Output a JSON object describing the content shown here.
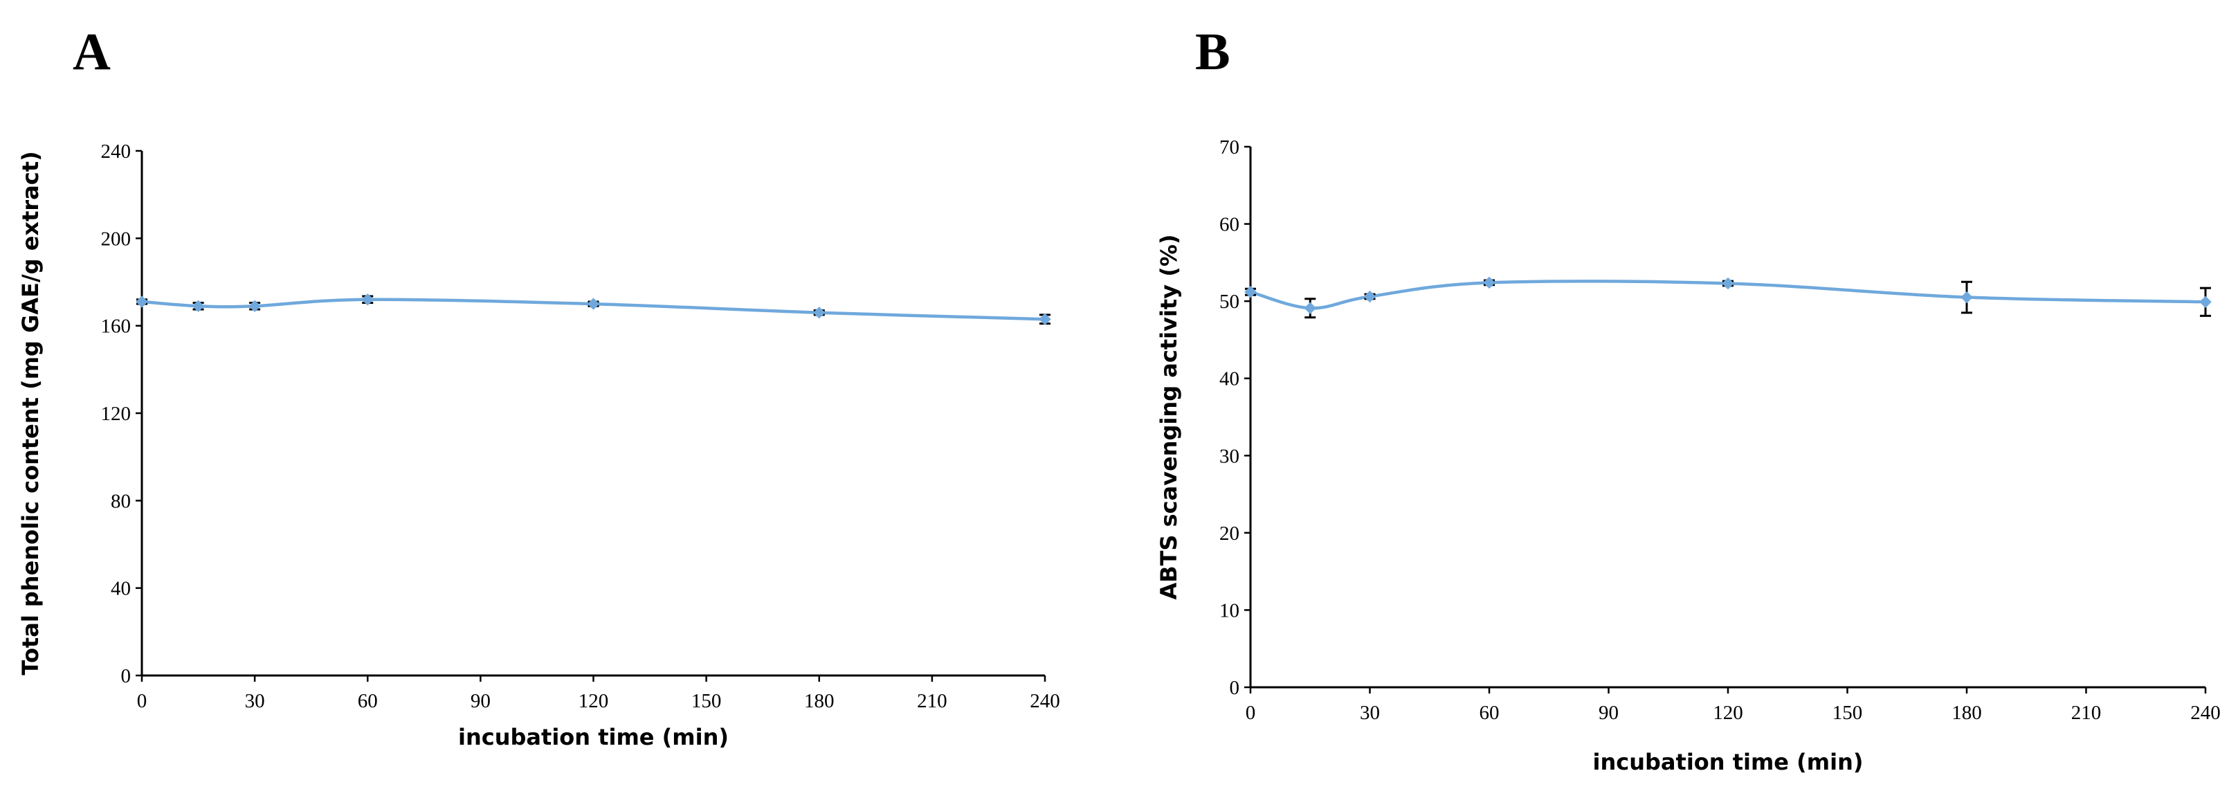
{
  "chart_data": [
    {
      "panel": "A",
      "type": "line",
      "xlabel": "incubation time  (min)",
      "ylabel": "Total phenolic content (mg GAE/g  extract)",
      "xlim": [
        0,
        240
      ],
      "ylim": [
        0,
        240
      ],
      "xticks": [
        0,
        30,
        60,
        90,
        120,
        150,
        180,
        210,
        240
      ],
      "yticks": [
        0,
        40,
        80,
        120,
        160,
        200,
        240
      ],
      "series": [
        {
          "name": "Total phenolic content",
          "color": "#6fa8dc",
          "x": [
            0,
            15,
            30,
            60,
            120,
            180,
            240
          ],
          "y": [
            171,
            169,
            169,
            172,
            170,
            166,
            163
          ],
          "err": [
            1,
            1.5,
            1.5,
            1.5,
            1,
            1,
            2
          ]
        }
      ]
    },
    {
      "panel": "B",
      "type": "line",
      "xlabel": "incubation time  (min)",
      "ylabel": "ABTS scavenging activity (%)",
      "xlim": [
        0,
        240
      ],
      "ylim": [
        0,
        70
      ],
      "xticks": [
        0,
        30,
        60,
        90,
        120,
        150,
        180,
        210,
        240
      ],
      "yticks": [
        0,
        10,
        20,
        30,
        40,
        50,
        60,
        70
      ],
      "series": [
        {
          "name": "ABTS scavenging activity",
          "color": "#6fa8dc",
          "x": [
            0,
            15,
            30,
            60,
            120,
            180,
            240
          ],
          "y": [
            51.2,
            49.1,
            50.6,
            52.4,
            52.3,
            50.5,
            49.9
          ],
          "err": [
            0.4,
            1.2,
            0.3,
            0.3,
            0.3,
            2.0,
            1.8
          ]
        }
      ]
    }
  ]
}
